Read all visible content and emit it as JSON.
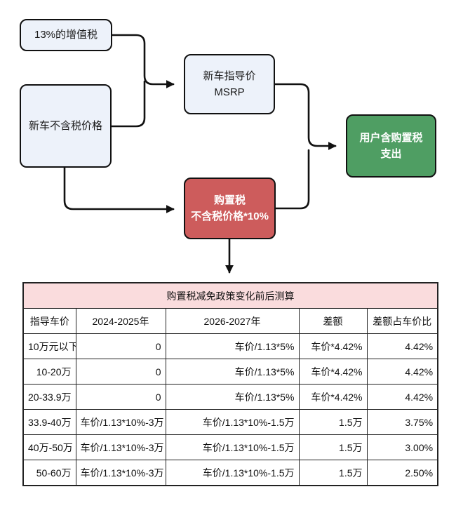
{
  "flowchart": {
    "boxes": {
      "vat": {
        "label": "13%的增值税"
      },
      "pretax_price": {
        "label": "新车不含税价格"
      },
      "msrp": {
        "line1": "新车指导价",
        "line2": "MSRP"
      },
      "purchase_tax": {
        "line1": "购置税",
        "line2": "不含税价格*10%"
      },
      "user_expense": {
        "line1": "用户含购置税",
        "line2": "支出"
      }
    },
    "colors": {
      "light_box_fill": "#edf2fa",
      "red_box_fill": "#cd5c5c",
      "green_box_fill": "#4f9e63",
      "box_border": "#111111",
      "arrow": "#111111"
    }
  },
  "table": {
    "title": "购置税减免政策变化前后测算",
    "title_bg": "#fadcdd",
    "headers": [
      "指导车价",
      "2024-2025年",
      "2026-2027年",
      "差额",
      "差额占车价比"
    ],
    "rows": [
      [
        "10万元以下",
        "0",
        "车价/1.13*5%",
        "车价*4.42%",
        "4.42%"
      ],
      [
        "10-20万",
        "0",
        "车价/1.13*5%",
        "车价*4.42%",
        "4.42%"
      ],
      [
        "20-33.9万",
        "0",
        "车价/1.13*5%",
        "车价*4.42%",
        "4.42%"
      ],
      [
        "33.9-40万",
        "车价/1.13*10%-3万",
        "车价/1.13*10%-1.5万",
        "1.5万",
        "3.75%"
      ],
      [
        "40万-50万",
        "车价/1.13*10%-3万",
        "车价/1.13*10%-1.5万",
        "1.5万",
        "3.00%"
      ],
      [
        "50-60万",
        "车价/1.13*10%-3万",
        "车价/1.13*10%-1.5万",
        "1.5万",
        "2.50%"
      ]
    ]
  }
}
